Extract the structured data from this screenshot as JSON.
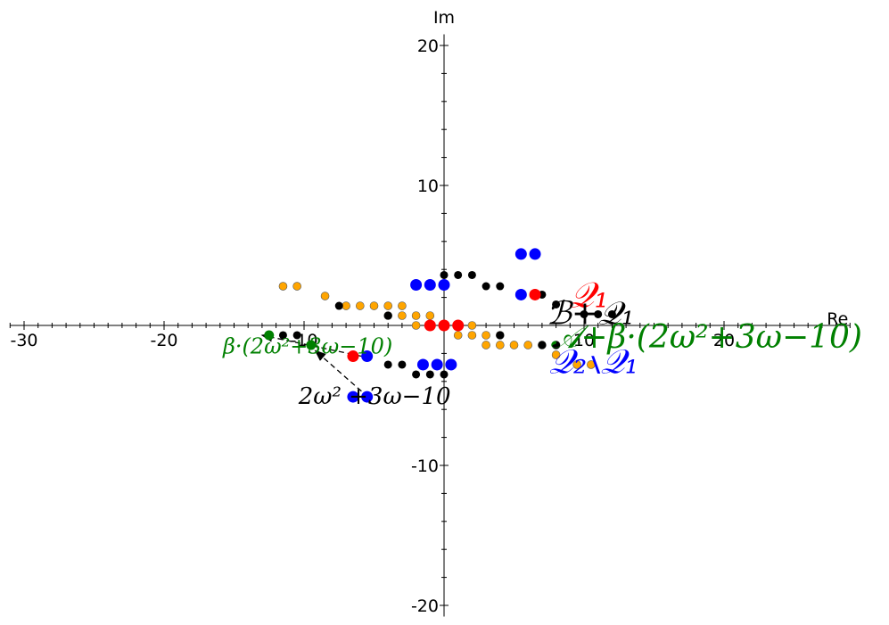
{
  "chart_data": {
    "type": "scatter",
    "title": "",
    "xlabel": "Re",
    "ylabel": "Im",
    "xlim": [
      -31,
      29
    ],
    "ylim": [
      -20.8,
      20.8
    ],
    "x_ticks": [
      -30,
      -20,
      -10,
      10,
      20
    ],
    "x_tick_labels": [
      "-30",
      "-20",
      "-10",
      "10",
      "20"
    ],
    "y_ticks": [
      -20,
      -10,
      10,
      20
    ],
    "y_tick_labels": [
      "-20",
      "-10",
      "10",
      "20"
    ],
    "grid": false,
    "series": [
      {
        "color": "#ffa500",
        "points": [
          [
            -11.5,
            2.8
          ],
          [
            -10.5,
            2.8
          ],
          [
            -8.5,
            2.1
          ],
          [
            -7,
            1.4
          ],
          [
            -6,
            1.4
          ],
          [
            -5,
            1.4
          ],
          [
            -4,
            1.4
          ],
          [
            -3,
            1.4
          ],
          [
            -4,
            0.7
          ],
          [
            -3,
            0.7
          ],
          [
            -2,
            0.7
          ],
          [
            -1,
            0.7
          ],
          [
            -2,
            0
          ],
          [
            1,
            0
          ],
          [
            2,
            0
          ],
          [
            1,
            -0.7
          ],
          [
            2,
            -0.7
          ],
          [
            3,
            -0.7
          ],
          [
            4,
            -0.7
          ],
          [
            3,
            -1.4
          ],
          [
            4,
            -1.4
          ],
          [
            5,
            -1.4
          ],
          [
            6,
            -1.4
          ],
          [
            7,
            -1.4
          ],
          [
            8,
            -1.4
          ],
          [
            8,
            -2.1
          ],
          [
            9.5,
            -2.8
          ],
          [
            10.5,
            -2.8
          ]
        ]
      },
      {
        "color": "#000000",
        "points": [
          [
            -12.5,
            -0.7
          ],
          [
            -11.5,
            -0.7
          ],
          [
            -10.5,
            -0.7
          ],
          [
            -7.5,
            1.4
          ],
          [
            -4,
            0.7
          ],
          [
            0,
            3.6
          ],
          [
            1,
            3.6
          ],
          [
            2,
            3.6
          ],
          [
            3,
            2.8
          ],
          [
            4,
            2.8
          ],
          [
            -4,
            -2.8
          ],
          [
            -3,
            -2.8
          ],
          [
            -2,
            -3.5
          ],
          [
            -1,
            -3.5
          ],
          [
            0,
            -3.5
          ],
          [
            4,
            -0.7
          ],
          [
            7,
            -1.4
          ],
          [
            8,
            -1.4
          ],
          [
            7,
            2.2
          ],
          [
            8,
            1.5
          ],
          [
            10,
            0.8
          ],
          [
            11,
            0.8
          ],
          [
            12,
            0.8
          ]
        ]
      },
      {
        "color": "#0000ff",
        "points": [
          [
            -2,
            2.9
          ],
          [
            -1,
            2.9
          ],
          [
            0,
            2.9
          ],
          [
            5.5,
            5.1
          ],
          [
            6.5,
            5.1
          ],
          [
            5.5,
            2.2
          ],
          [
            -1.5,
            -2.8
          ],
          [
            -0.5,
            -2.8
          ],
          [
            0.5,
            -2.8
          ],
          [
            -5.5,
            -2.2
          ],
          [
            -6.5,
            -5.1
          ],
          [
            -5.5,
            -5.1
          ]
        ]
      },
      {
        "color": "#ff0000",
        "points": [
          [
            6.5,
            2.2
          ],
          [
            -6.5,
            -2.2
          ],
          [
            -1,
            0
          ],
          [
            0,
            0
          ],
          [
            1,
            0
          ]
        ]
      },
      {
        "color": "#008000",
        "points": [
          [
            -12.5,
            -0.7
          ],
          [
            -9.5,
            -1.4
          ]
        ]
      }
    ],
    "annotations": [
      {
        "text": "𝒬₁",
        "x": 8.9,
        "y": 1.3,
        "color": "#ff0000",
        "size": 40
      },
      {
        "text": "ℬ+𝒬₁",
        "x": 7.3,
        "y": 0.1,
        "color": "#000000",
        "size": 36
      },
      {
        "text": "𝒜+β·(2ω²+3ω−10)",
        "x": 7.6,
        "y": -1.6,
        "color": "#008000",
        "size": 36
      },
      {
        "text": "𝒬₂∖𝒬₁",
        "x": 7.5,
        "y": -3.4,
        "color": "#0000ff",
        "size": 38
      },
      {
        "text": "β·(2ω²+3ω−10)",
        "x": -15.8,
        "y": -2.0,
        "color": "#008000",
        "size": 24
      },
      {
        "text": "2ω² +3ω−10",
        "x": -10.4,
        "y": -5.6,
        "color": "#000000",
        "size": 26
      }
    ],
    "arrows": [
      {
        "from": [
          -5.9,
          -4.7
        ],
        "to": [
          -9.2,
          -1.8
        ],
        "dashed": true,
        "color": "#000000"
      },
      {
        "from": [
          -5.9,
          -2.2
        ],
        "to": [
          -13.0,
          -0.7
        ],
        "dashed": true,
        "color": "#000000"
      }
    ]
  }
}
